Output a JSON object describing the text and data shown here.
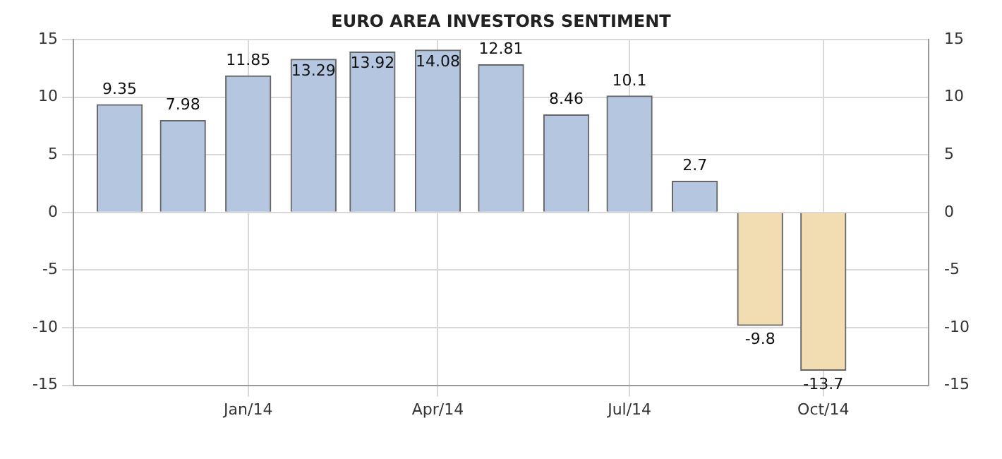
{
  "chart_data": {
    "type": "bar",
    "title": "EURO AREA INVESTORS SENTIMENT",
    "x": [
      "2013-11",
      "2013-12",
      "2014-01",
      "2014-02",
      "2014-03",
      "2014-04",
      "2014-05",
      "2014-06",
      "2014-07",
      "2014-08",
      "2014-09",
      "2014-10"
    ],
    "values": [
      9.35,
      7.98,
      11.85,
      13.29,
      13.92,
      14.08,
      12.81,
      8.46,
      10.1,
      2.7,
      -9.8,
      -13.7
    ],
    "colors": [
      "#b4c6e0",
      "#b4c6e0",
      "#b4c6e0",
      "#b4c6e0",
      "#b4c6e0",
      "#b4c6e0",
      "#b4c6e0",
      "#b4c6e0",
      "#b4c6e0",
      "#b4c6e0",
      "#f2dcb2",
      "#f2dcb2"
    ],
    "data_labels": true,
    "xlim": [
      "2013-10-10",
      "2014-11-20"
    ],
    "xticks": [
      {
        "value": "2014-01",
        "label": "Jan/14"
      },
      {
        "value": "2014-04",
        "label": "Apr/14"
      },
      {
        "value": "2014-07",
        "label": "Jul/14"
      },
      {
        "value": "2014-10",
        "label": "Oct/14"
      }
    ],
    "ylim": [
      -15,
      15
    ],
    "yticks": [
      -15,
      -10,
      -5,
      0,
      5,
      10,
      15
    ],
    "y2lim": [
      -15,
      15
    ],
    "y2ticks": [
      -15,
      -10,
      -5,
      0,
      5,
      10,
      15
    ],
    "grid": true
  }
}
